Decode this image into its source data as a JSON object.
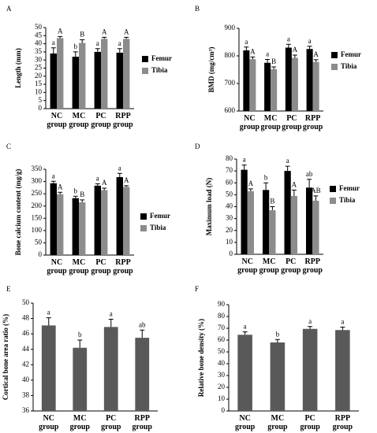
{
  "chart_data": [
    {
      "type": "bar",
      "panel": "A",
      "ylabel": "Length (mm)",
      "categories": [
        "NC group",
        "MC group",
        "PC group",
        "RPP group"
      ],
      "ylim": [
        0,
        50
      ],
      "yticks": [
        0,
        5,
        10,
        15,
        20,
        25,
        30,
        35,
        40,
        45,
        50
      ],
      "series": [
        {
          "name": "Femur",
          "color": "#000000",
          "values": [
            34,
            32,
            35,
            34.5
          ],
          "errors": [
            3.5,
            3,
            2,
            2.5
          ],
          "letters": [
            "a",
            "b",
            "a",
            "a"
          ]
        },
        {
          "name": "Tibia",
          "color": "#8c8c8c",
          "values": [
            43.5,
            40.5,
            43,
            43
          ],
          "errors": [
            1,
            2,
            1,
            1
          ],
          "letters": [
            "A",
            "B",
            "A",
            "A"
          ]
        }
      ]
    },
    {
      "type": "bar",
      "panel": "B",
      "ylabel": "BMD (mg/cm³)",
      "categories": [
        "NC group",
        "MC group",
        "PC group",
        "RPP group"
      ],
      "ylim": [
        600,
        900
      ],
      "yticks": [
        600,
        700,
        800,
        900
      ],
      "series": [
        {
          "name": "Femur",
          "color": "#000000",
          "values": [
            820,
            775,
            830,
            825
          ],
          "errors": [
            12,
            12,
            12,
            10
          ],
          "letters": [
            "a",
            "a",
            "a",
            "a"
          ]
        },
        {
          "name": "Tibia",
          "color": "#8c8c8c",
          "values": [
            788,
            752,
            793,
            778
          ],
          "errors": [
            8,
            8,
            10,
            8
          ],
          "letters": [
            "A",
            "B",
            "A",
            "A"
          ]
        }
      ]
    },
    {
      "type": "bar",
      "panel": "C",
      "ylabel": "Bone calcium content (mg/g)",
      "categories": [
        "NC group",
        "MC group",
        "PC group",
        "RPP group"
      ],
      "ylim": [
        0,
        350
      ],
      "yticks": [
        0,
        50,
        100,
        150,
        200,
        250,
        300,
        350
      ],
      "series": [
        {
          "name": "Femur",
          "color": "#000000",
          "values": [
            293,
            232,
            283,
            318
          ],
          "errors": [
            8,
            8,
            8,
            15
          ],
          "letters": [
            "a",
            "b",
            "a",
            "a"
          ]
        },
        {
          "name": "Tibia",
          "color": "#8c8c8c",
          "values": [
            248,
            215,
            265,
            278
          ],
          "errors": [
            8,
            10,
            8,
            5
          ],
          "letters": [
            "A",
            "B",
            "A",
            "A"
          ]
        }
      ]
    },
    {
      "type": "bar",
      "panel": "D",
      "ylabel": "Maximum load (N)",
      "categories": [
        "NC group",
        "MC group",
        "PC group",
        "RPP group"
      ],
      "ylim": [
        0,
        80
      ],
      "yticks": [
        0,
        10,
        20,
        30,
        40,
        50,
        60,
        70,
        80
      ],
      "series": [
        {
          "name": "Femur",
          "color": "#000000",
          "values": [
            71,
            54,
            70,
            56
          ],
          "errors": [
            4,
            6,
            4,
            7
          ],
          "letters": [
            "a",
            "b",
            "a",
            "ab"
          ]
        },
        {
          "name": "Tibia",
          "color": "#8c8c8c",
          "values": [
            53,
            37,
            49,
            45
          ],
          "errors": [
            2,
            3,
            5,
            4
          ],
          "letters": [
            "A",
            "B",
            "A",
            "AB"
          ]
        }
      ]
    },
    {
      "type": "bar",
      "panel": "E",
      "ylabel": "Cortical bone area ratio (%)",
      "categories": [
        "NC group",
        "MC group",
        "PC group",
        "RPP group"
      ],
      "ylim": [
        36,
        50
      ],
      "yticks": [
        36,
        38,
        40,
        42,
        44,
        46,
        48,
        50
      ],
      "color": "#595959",
      "values": [
        47.1,
        44.2,
        46.9,
        45.5
      ],
      "errors": [
        1,
        1,
        1,
        1
      ],
      "letters": [
        "a",
        "b",
        "a",
        "ab"
      ]
    },
    {
      "type": "bar",
      "panel": "F",
      "ylabel": "Relative bone density (%)",
      "categories": [
        "NC group",
        "MC group",
        "PC group",
        "RPP group"
      ],
      "ylim": [
        0,
        90
      ],
      "yticks": [
        0,
        10,
        20,
        30,
        40,
        50,
        60,
        70,
        80,
        90
      ],
      "color": "#595959",
      "values": [
        64.5,
        58,
        69.5,
        68.5
      ],
      "errors": [
        2.5,
        2.5,
        2,
        2.5
      ],
      "letters": [
        "a",
        "b",
        "a",
        "a"
      ]
    }
  ]
}
